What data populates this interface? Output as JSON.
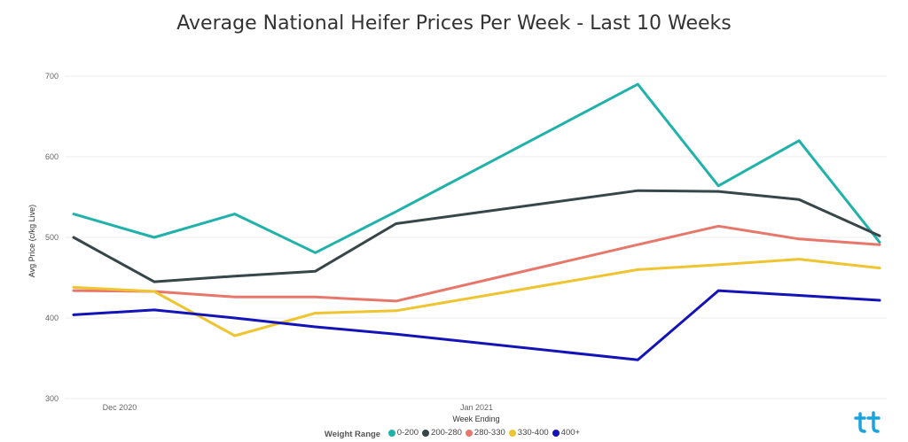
{
  "chart_data": {
    "type": "line",
    "title": "Average National Heifer Prices Per Week - Last 10 Weeks",
    "xlabel": "Week Ending",
    "ylabel": "Avg Price (c/kg Live)",
    "ylim": [
      300,
      700
    ],
    "y_ticks": [
      300,
      400,
      500,
      600,
      700
    ],
    "x": [
      "2020-11-27",
      "2020-12-04",
      "2020-12-11",
      "2020-12-18",
      "2020-12-25",
      "2021-01-15",
      "2021-01-22",
      "2021-01-29",
      "2021-02-05"
    ],
    "x_ticks": [
      {
        "label": "Dec 2020",
        "date": "2020-12-01"
      },
      {
        "label": "Jan 2021",
        "date": "2021-01-01"
      }
    ],
    "grid": true,
    "legend_title": "Weight Range",
    "legend_position": "bottom",
    "series": [
      {
        "name": "0-200",
        "color": "#20b2aa",
        "values": [
          529,
          500,
          529,
          481,
          532,
          690,
          564,
          620,
          494
        ]
      },
      {
        "name": "200-280",
        "color": "#374649",
        "values": [
          500,
          445,
          452,
          458,
          517,
          558,
          557,
          547,
          502
        ]
      },
      {
        "name": "280-330",
        "color": "#e8776b",
        "values": [
          434,
          433,
          426,
          426,
          421,
          491,
          514,
          498,
          491
        ]
      },
      {
        "name": "330-400",
        "color": "#eec530",
        "values": [
          438,
          433,
          378,
          406,
          409,
          460,
          466,
          473,
          462
        ]
      },
      {
        "name": "400+",
        "color": "#1413b8",
        "values": [
          404,
          410,
          400,
          389,
          380,
          348,
          434,
          428,
          422
        ]
      }
    ]
  },
  "logo": {
    "icon": "brand-logo-icon",
    "color": "#1aa3e0"
  }
}
